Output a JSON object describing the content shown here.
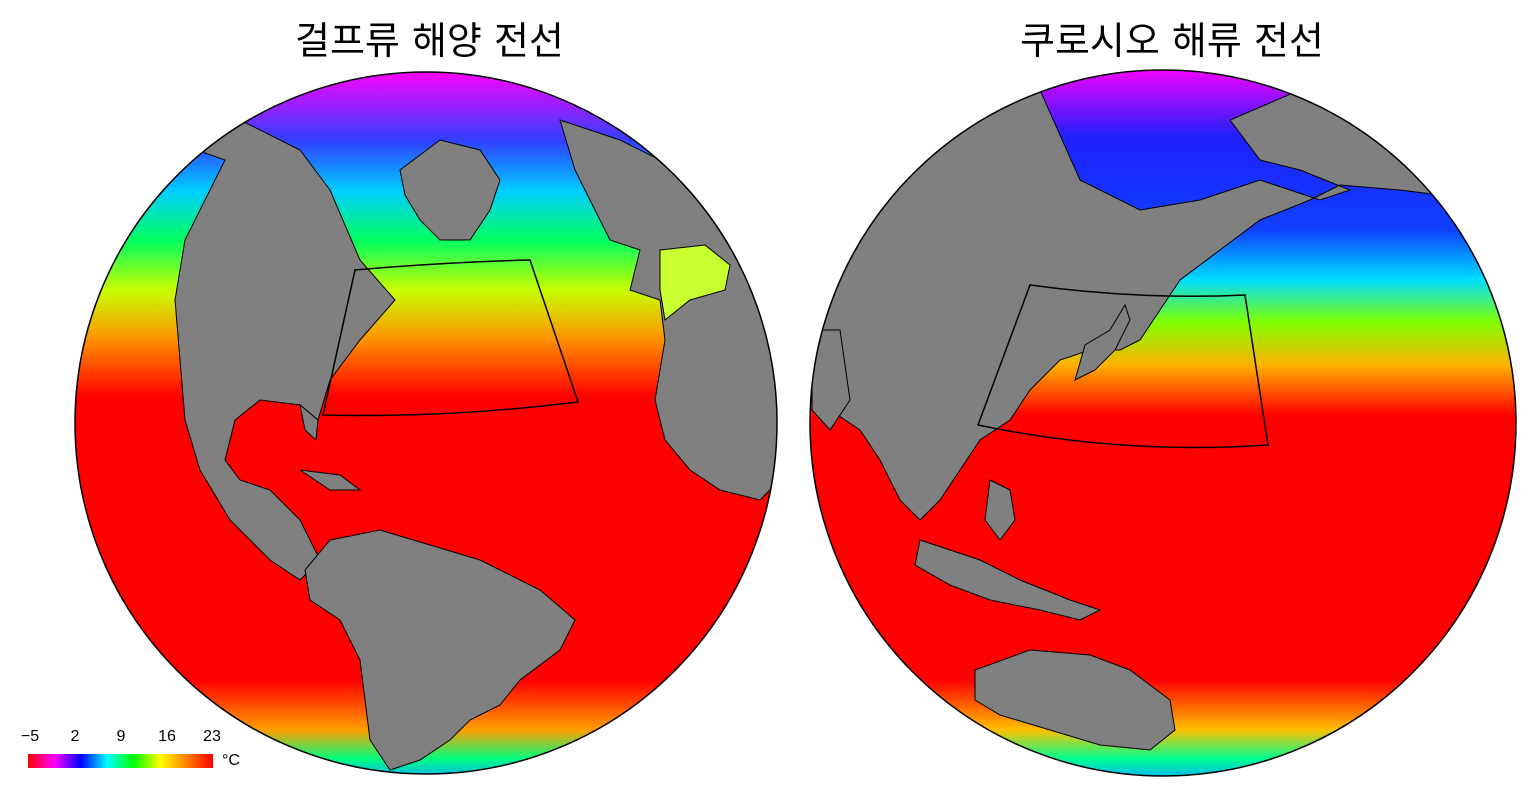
{
  "panels": {
    "left": {
      "title": "걸프류 해양 전선"
    },
    "right": {
      "title": "쿠로시오 해류 전선"
    }
  },
  "colorbar": {
    "ticks": [
      "−5",
      "2",
      "9",
      "16",
      "23"
    ],
    "unit": "°C",
    "colors": [
      "#ff0000",
      "#ff00ff",
      "#0000ff",
      "#00ffff",
      "#00ff00",
      "#ffff00",
      "#ff8000",
      "#ff0000"
    ]
  },
  "colors": {
    "land": "#808080",
    "warm_sea": "#ff0000",
    "frame": "#000000"
  }
}
